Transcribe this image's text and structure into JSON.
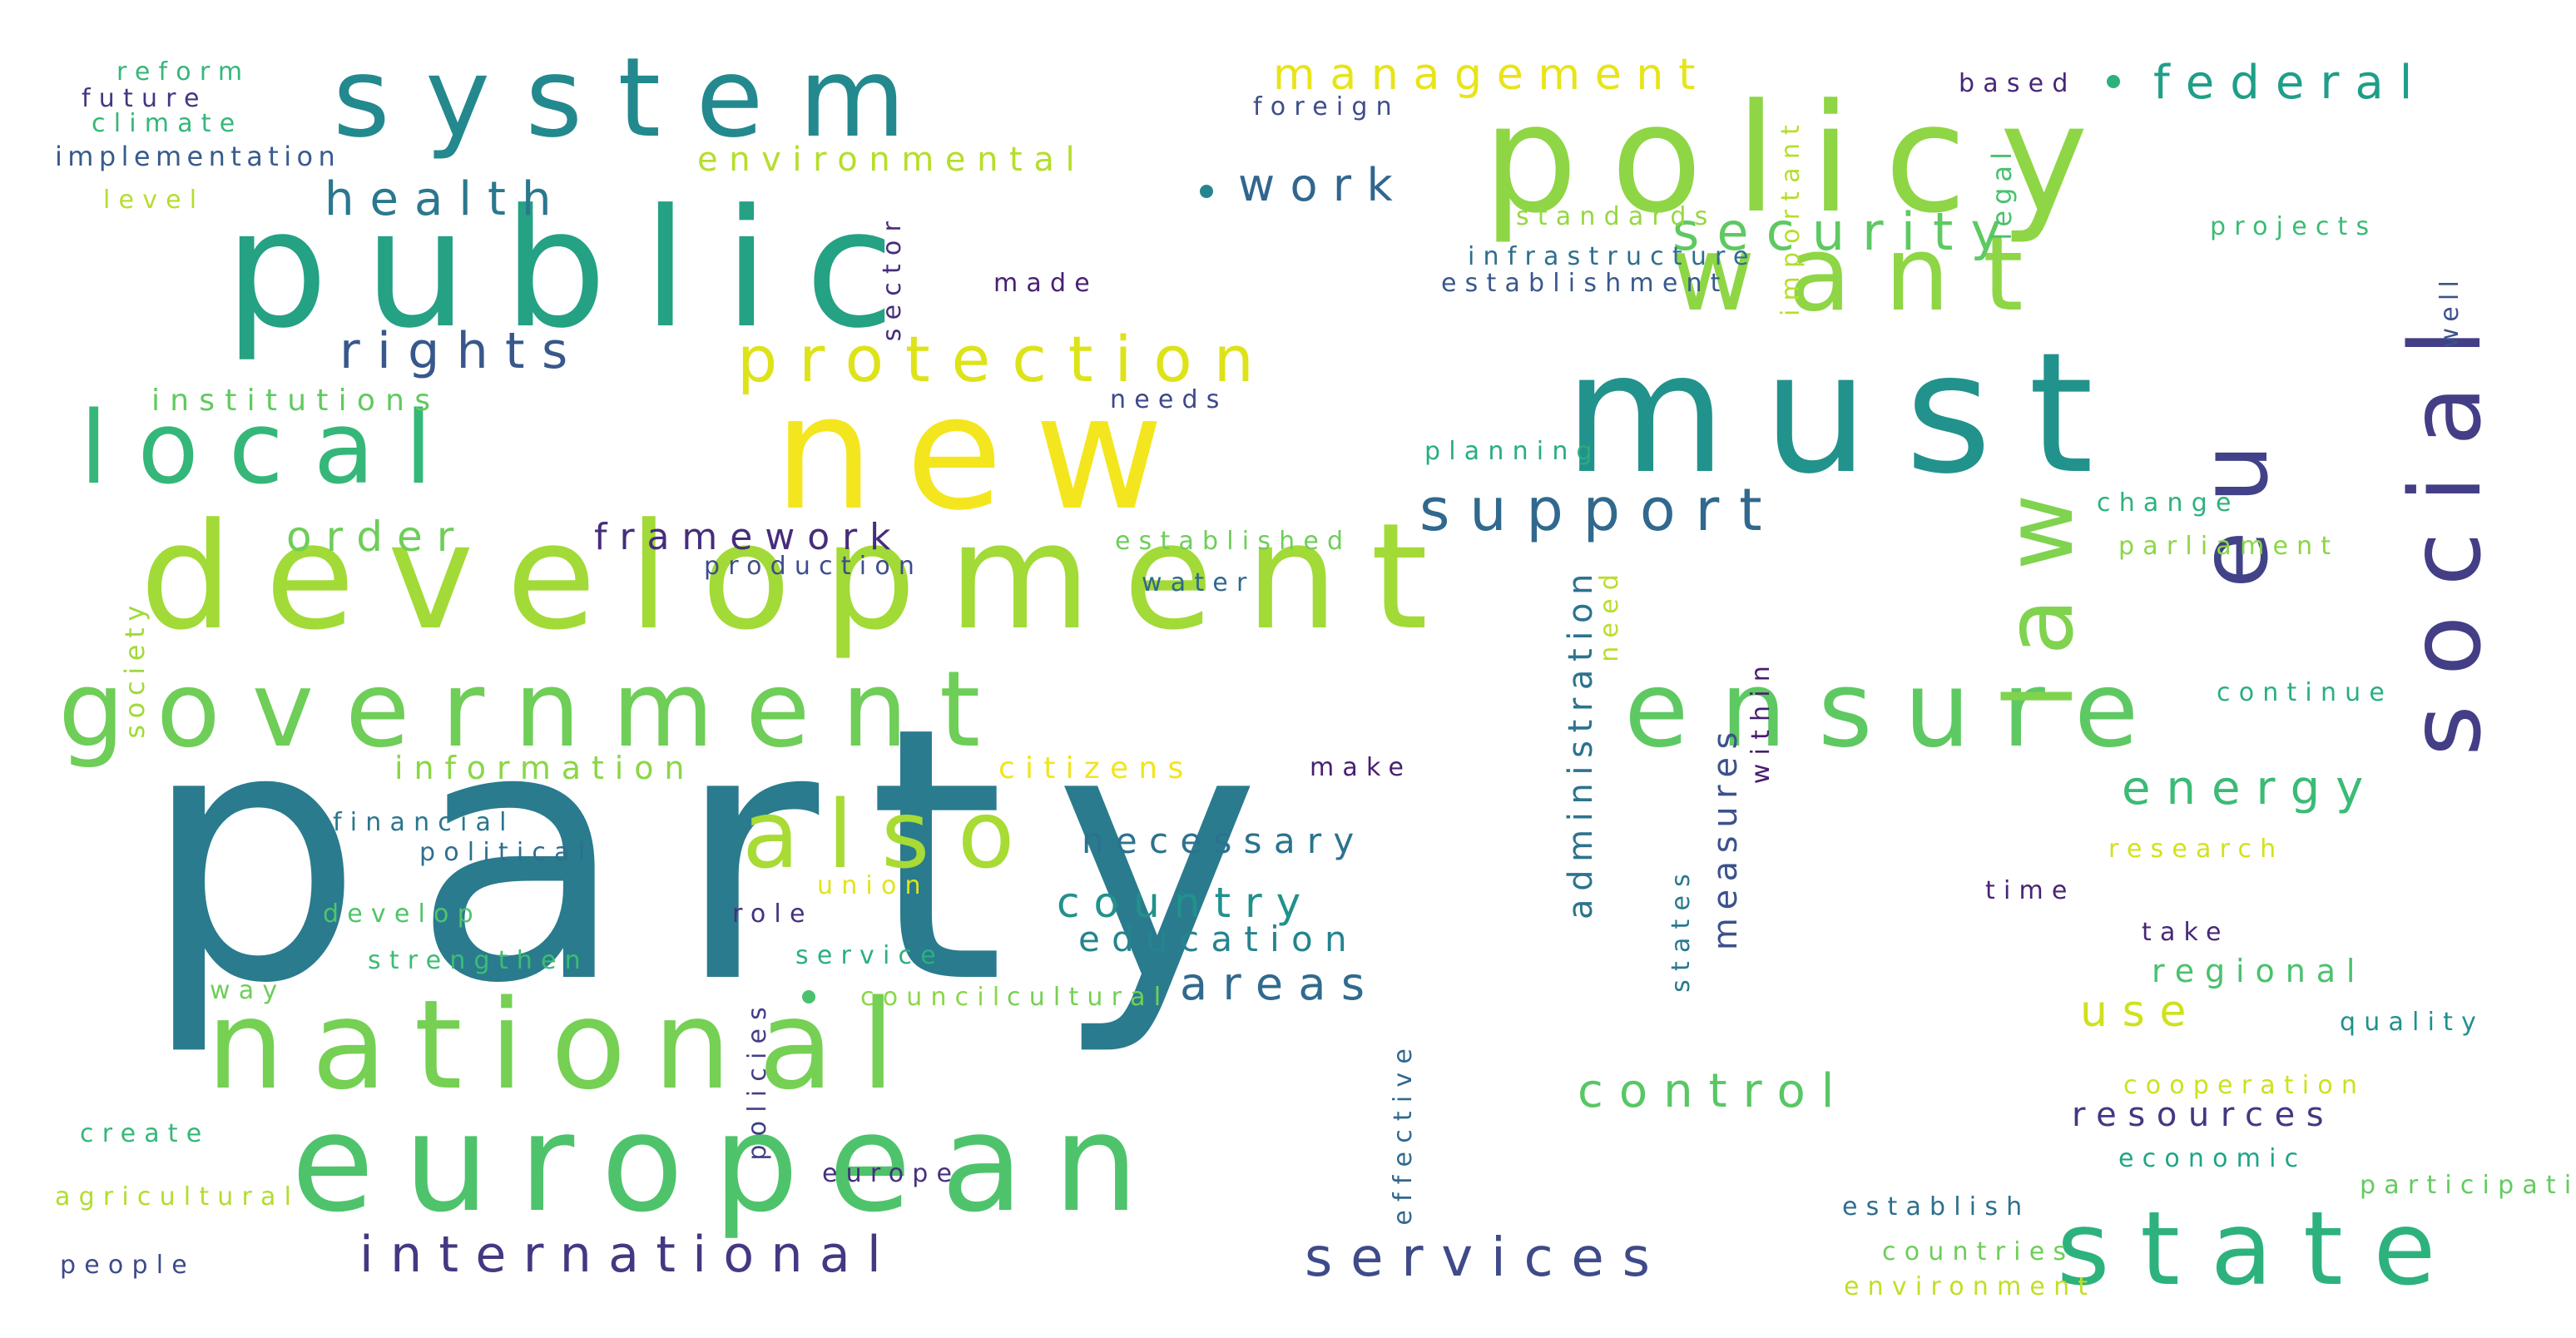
{
  "cloud": {
    "words": [
      {
        "text": "party",
        "color": "#2a7b8e"
      },
      {
        "text": "public",
        "color": "#25a184"
      },
      {
        "text": "policy",
        "color": "#8ed645"
      },
      {
        "text": "must",
        "color": "#22928c"
      },
      {
        "text": "development",
        "color": "#a2da37"
      },
      {
        "text": "european",
        "color": "#4ec36b"
      },
      {
        "text": "national",
        "color": "#75d054"
      },
      {
        "text": "government",
        "color": "#6ece58"
      },
      {
        "text": "new",
        "color": "#f4e61e"
      },
      {
        "text": "system",
        "color": "#23898e"
      },
      {
        "text": "want",
        "color": "#8ed645"
      },
      {
        "text": "local",
        "color": "#35b779"
      },
      {
        "text": "ensure",
        "color": "#5ec962"
      },
      {
        "text": "state",
        "color": "#2db27d"
      },
      {
        "text": "also",
        "color": "#a8db34"
      },
      {
        "text": "social",
        "color": "#433e85"
      },
      {
        "text": "law",
        "color": "#7fd34e"
      },
      {
        "text": "eu",
        "color": "#414287"
      },
      {
        "text": "protection",
        "color": "#dde318"
      },
      {
        "text": "security",
        "color": "#5ec962"
      },
      {
        "text": "support",
        "color": "#31688e"
      },
      {
        "text": "services",
        "color": "#3e4a89"
      },
      {
        "text": "international",
        "color": "#453882"
      },
      {
        "text": "rights",
        "color": "#38588c"
      },
      {
        "text": "health",
        "color": "#2a788e"
      },
      {
        "text": "management",
        "color": "#e7e419"
      },
      {
        "text": "federal",
        "color": "#1f9e89"
      },
      {
        "text": "work",
        "color": "#31668e"
      },
      {
        "text": "framework",
        "color": "#472d7b"
      },
      {
        "text": "order",
        "color": "#6ece58"
      },
      {
        "text": "control",
        "color": "#58c765"
      },
      {
        "text": "energy",
        "color": "#3bbb75"
      },
      {
        "text": "areas",
        "color": "#306a8e"
      },
      {
        "text": "country",
        "color": "#21918c"
      },
      {
        "text": "education",
        "color": "#25848e"
      },
      {
        "text": "necessary",
        "color": "#2c728e"
      },
      {
        "text": "use",
        "color": "#d0e11c"
      },
      {
        "text": "resources",
        "color": "#453781"
      },
      {
        "text": "environmental",
        "color": "#b5de2b"
      },
      {
        "text": "information",
        "color": "#8bd646"
      },
      {
        "text": "citizens",
        "color": "#f1e51d"
      },
      {
        "text": "regional",
        "color": "#4ac16d"
      },
      {
        "text": "institutions",
        "color": "#60ca60"
      },
      {
        "text": "reform",
        "color": "#35b779"
      },
      {
        "text": "future",
        "color": "#453781"
      },
      {
        "text": "climate",
        "color": "#35b779"
      },
      {
        "text": "implementation",
        "color": "#375b8d"
      },
      {
        "text": "level",
        "color": "#b5de2b"
      },
      {
        "text": "foreign",
        "color": "#3d4d8a"
      },
      {
        "text": "based",
        "color": "#482677"
      },
      {
        "text": "projects",
        "color": "#3bbb75"
      },
      {
        "text": "standards",
        "color": "#95d840"
      },
      {
        "text": "infrastructure",
        "color": "#2e6e8e"
      },
      {
        "text": "establishment",
        "color": "#38588c"
      },
      {
        "text": "made",
        "color": "#482173"
      },
      {
        "text": "needs",
        "color": "#3f4889"
      },
      {
        "text": "planning",
        "color": "#27ad81"
      },
      {
        "text": "change",
        "color": "#2db27d"
      },
      {
        "text": "parliament",
        "color": "#8bd646"
      },
      {
        "text": "established",
        "color": "#6ece58"
      },
      {
        "text": "water",
        "color": "#31688e"
      },
      {
        "text": "production",
        "color": "#3d4e8a"
      },
      {
        "text": "continue",
        "color": "#29af7f"
      },
      {
        "text": "research",
        "color": "#d2e21b"
      },
      {
        "text": "time",
        "color": "#482475"
      },
      {
        "text": "take",
        "color": "#482878"
      },
      {
        "text": "quality",
        "color": "#21908d"
      },
      {
        "text": "cooperation",
        "color": "#cde11d"
      },
      {
        "text": "economic",
        "color": "#20a486"
      },
      {
        "text": "participation",
        "color": "#63cb5f"
      },
      {
        "text": "establish",
        "color": "#2e6f8e"
      },
      {
        "text": "countries",
        "color": "#6ece58"
      },
      {
        "text": "environment",
        "color": "#c0df25"
      },
      {
        "text": "financial",
        "color": "#2a768e"
      },
      {
        "text": "political",
        "color": "#2e6e8e"
      },
      {
        "text": "develop",
        "color": "#50c46a"
      },
      {
        "text": "strengthen",
        "color": "#3dbc74"
      },
      {
        "text": "way",
        "color": "#6ece58"
      },
      {
        "text": "union",
        "color": "#e2e418"
      },
      {
        "text": "role",
        "color": "#46307e"
      },
      {
        "text": "service",
        "color": "#2ab07f"
      },
      {
        "text": "council",
        "color": "#8bd646"
      },
      {
        "text": "cultural",
        "color": "#75d054"
      },
      {
        "text": "make",
        "color": "#481f70"
      },
      {
        "text": "europe",
        "color": "#472f7d"
      },
      {
        "text": "create",
        "color": "#35b779"
      },
      {
        "text": "agricultural",
        "color": "#b2dd2d"
      },
      {
        "text": "people",
        "color": "#3e4a89"
      },
      {
        "text": "important",
        "color": "#b5de2b"
      },
      {
        "text": "legal",
        "color": "#4ac16d"
      },
      {
        "text": "well",
        "color": "#3b528b"
      },
      {
        "text": "sector",
        "color": "#472d7b"
      },
      {
        "text": "need",
        "color": "#b8de29"
      },
      {
        "text": "administration",
        "color": "#2c738e"
      },
      {
        "text": "measures",
        "color": "#3b528b"
      },
      {
        "text": "within",
        "color": "#481d6f"
      },
      {
        "text": "states",
        "color": "#29798e"
      },
      {
        "text": "society",
        "color": "#a0da39"
      },
      {
        "text": "policies",
        "color": "#433e85"
      },
      {
        "text": "effective",
        "color": "#31688e"
      }
    ],
    "dots": [
      {
        "name": "dot-1",
        "color": "#2db27d"
      },
      {
        "name": "dot-2",
        "color": "#25858e"
      },
      {
        "name": "dot-3",
        "color": "#4ac16d"
      }
    ]
  }
}
